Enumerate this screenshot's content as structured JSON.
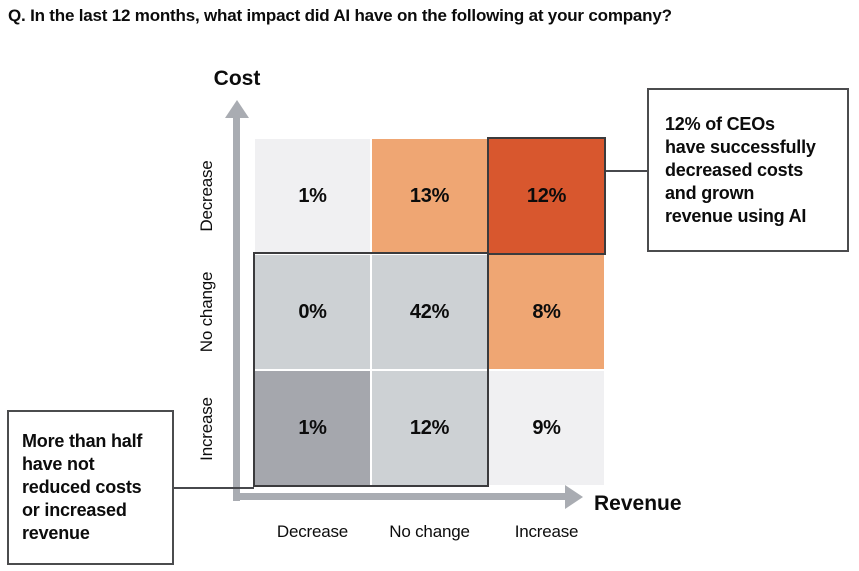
{
  "title": "Q. In the last 12 months, what impact did AI have on the following at your company?",
  "chart_data": {
    "type": "heatmap",
    "title": "Q. In the last 12 months, what impact did AI have on the following at your company?",
    "x_axis": {
      "label": "Revenue",
      "categories": [
        "Decrease",
        "No change",
        "Increase"
      ]
    },
    "y_axis": {
      "label": "Cost",
      "categories": [
        "Decrease",
        "No change",
        "Increase"
      ]
    },
    "values_percent": [
      [
        1,
        13,
        12
      ],
      [
        0,
        42,
        8
      ],
      [
        1,
        12,
        9
      ]
    ],
    "cells": [
      {
        "cost": "Decrease",
        "revenue": "Decrease",
        "label": "1%",
        "value": 1,
        "color": "#f0f0f2"
      },
      {
        "cost": "Decrease",
        "revenue": "No change",
        "label": "13%",
        "value": 13,
        "color": "#efa673"
      },
      {
        "cost": "Decrease",
        "revenue": "Increase",
        "label": "12%",
        "value": 12,
        "color": "#d8572e"
      },
      {
        "cost": "No change",
        "revenue": "Decrease",
        "label": "0%",
        "value": 0,
        "color": "#cdd1d4"
      },
      {
        "cost": "No change",
        "revenue": "No change",
        "label": "42%",
        "value": 42,
        "color": "#cdd1d4"
      },
      {
        "cost": "No change",
        "revenue": "Increase",
        "label": "8%",
        "value": 8,
        "color": "#efa673"
      },
      {
        "cost": "Increase",
        "revenue": "Decrease",
        "label": "1%",
        "value": 1,
        "color": "#a5a7ad"
      },
      {
        "cost": "Increase",
        "revenue": "No change",
        "label": "12%",
        "value": 12,
        "color": "#cdd1d4"
      },
      {
        "cost": "Increase",
        "revenue": "Increase",
        "label": "9%",
        "value": 9,
        "color": "#f0f0f2"
      }
    ],
    "annotations": {
      "right_callout": "12% of CEOs\nhave successfully\ndecreased costs\nand grown\nrevenue using AI",
      "left_callout": "More than half\nhave not\nreduced costs\nor increased\nrevenue"
    },
    "colors": {
      "highlight_orange": "#d8572e",
      "light_orange": "#efa673",
      "light_gray": "#f0f0f2",
      "medium_gray": "#cdd1d4",
      "dark_gray": "#a5a7ad",
      "axis_gray": "#a9acb2",
      "outline_dark": "#3b3b3d"
    },
    "legend": "none",
    "grid": "off"
  }
}
